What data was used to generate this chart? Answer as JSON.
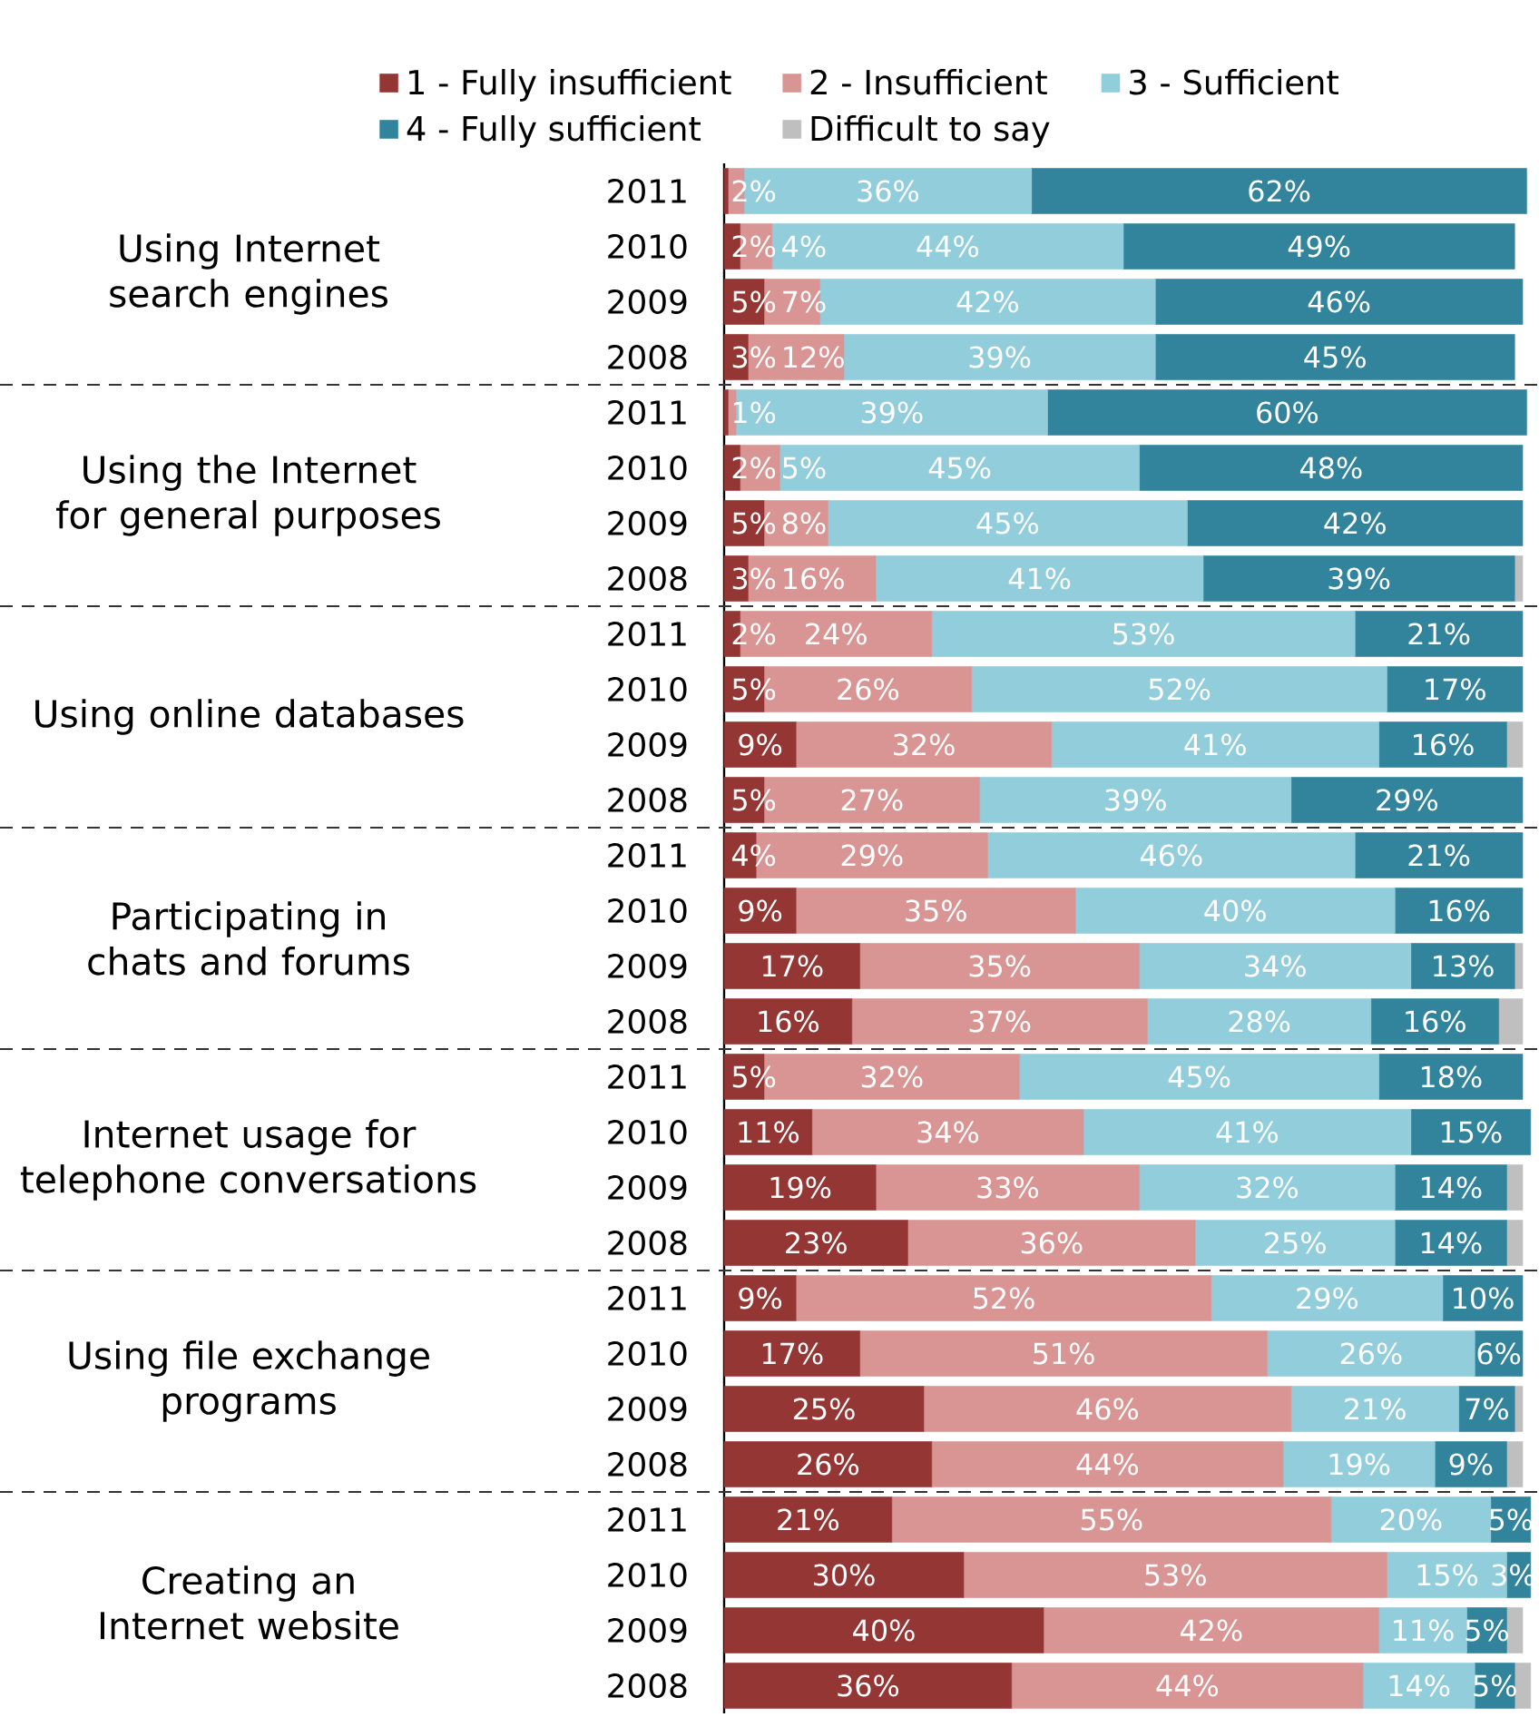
{
  "chart_data": {
    "type": "bar",
    "orientation": "horizontal",
    "stacked": true,
    "legend": "top",
    "tick_labels": "y",
    "grid": false,
    "categories": [
      "2011",
      "2010",
      "2009",
      "2008",
      "2011",
      "2010",
      "2009",
      "2008",
      "2011",
      "2010",
      "2009",
      "2008",
      "2011",
      "2010",
      "2009",
      "2008",
      "2011",
      "2010",
      "2009",
      "2008",
      "2011",
      "2010",
      "2009",
      "2008",
      "2011",
      "2010",
      "2009",
      "2008"
    ],
    "annotations": [
      "Using Internet search engines",
      "Using the Internet for general purposes",
      "Using online databases",
      "Participating in chats and forums",
      "Internet usage for telephone conversations",
      "Using file exchange programs",
      "Creating an Internet website"
    ],
    "series": [
      {
        "name": "1 - Fully insufficient",
        "color": "#943634",
        "values": [
          0.5,
          2,
          5,
          3,
          0.5,
          2,
          5,
          3,
          2,
          5,
          9,
          5,
          4,
          9,
          17,
          16,
          5,
          11,
          19,
          23,
          9,
          17,
          25,
          26,
          21,
          30,
          40,
          36
        ],
        "value_labels": [
          null,
          "2%",
          "5%",
          "3%",
          null,
          "2%",
          "5%",
          "3%",
          "2%",
          "5%",
          "9%",
          "5%",
          "4%",
          "9%",
          "17%",
          "16%",
          "5%",
          "11%",
          "19%",
          "23%",
          "9%",
          "17%",
          "25%",
          "26%",
          "21%",
          "30%",
          "40%",
          "36%"
        ]
      },
      {
        "name": "2 - Insufficient",
        "color": "#d99594",
        "values": [
          2,
          4,
          7,
          12,
          1,
          5,
          8,
          16,
          24,
          26,
          32,
          27,
          29,
          35,
          35,
          37,
          32,
          34,
          33,
          36,
          52,
          51,
          46,
          44,
          55,
          53,
          42,
          44
        ],
        "value_labels": [
          "2%",
          "4%",
          "7%",
          "12%",
          "1%",
          "5%",
          "8%",
          "16%",
          "24%",
          "26%",
          "32%",
          "27%",
          "29%",
          "35%",
          "35%",
          "37%",
          "32%",
          "34%",
          "33%",
          "36%",
          "52%",
          "51%",
          "46%",
          "44%",
          "55%",
          "53%",
          "42%",
          "44%"
        ]
      },
      {
        "name": "3 - Sufficient",
        "color": "#92cddc",
        "values": [
          36,
          44,
          42,
          39,
          39,
          45,
          45,
          41,
          53,
          52,
          41,
          39,
          46,
          40,
          34,
          28,
          45,
          41,
          32,
          25,
          29,
          26,
          21,
          19,
          20,
          15,
          11,
          14
        ],
        "value_labels": [
          "36%",
          "44%",
          "42%",
          "39%",
          "39%",
          "45%",
          "45%",
          "41%",
          "53%",
          "52%",
          "41%",
          "39%",
          "46%",
          "40%",
          "34%",
          "28%",
          "45%",
          "41%",
          "32%",
          "25%",
          "29%",
          "26%",
          "21%",
          "19%",
          "20%",
          "15%",
          "11%",
          "14%"
        ]
      },
      {
        "name": "4 - Fully sufficient",
        "color": "#31849b",
        "values": [
          62,
          49,
          46,
          45,
          60,
          48,
          42,
          39,
          21,
          17,
          16,
          29,
          21,
          16,
          13,
          16,
          18,
          15,
          14,
          14,
          10,
          6,
          7,
          9,
          5,
          3,
          5,
          5
        ],
        "value_labels": [
          "62%",
          "49%",
          "46%",
          "45%",
          "60%",
          "48%",
          "42%",
          "39%",
          "21%",
          "17%",
          "16%",
          "29%",
          "21%",
          "16%",
          "13%",
          "16%",
          "18%",
          "15%",
          "14%",
          "14%",
          "10%",
          "6%",
          "7%",
          "9%",
          "5%",
          "3%",
          "5%",
          "5%"
        ]
      },
      {
        "name": "Difficult to say",
        "color": "#bfbfbf",
        "values": [
          0,
          0,
          0,
          0,
          0,
          0,
          0,
          1,
          0,
          0,
          2,
          0,
          0,
          0,
          1,
          3,
          0,
          0,
          2,
          2,
          0,
          0,
          1,
          2,
          0,
          0,
          2,
          2
        ]
      }
    ]
  }
}
